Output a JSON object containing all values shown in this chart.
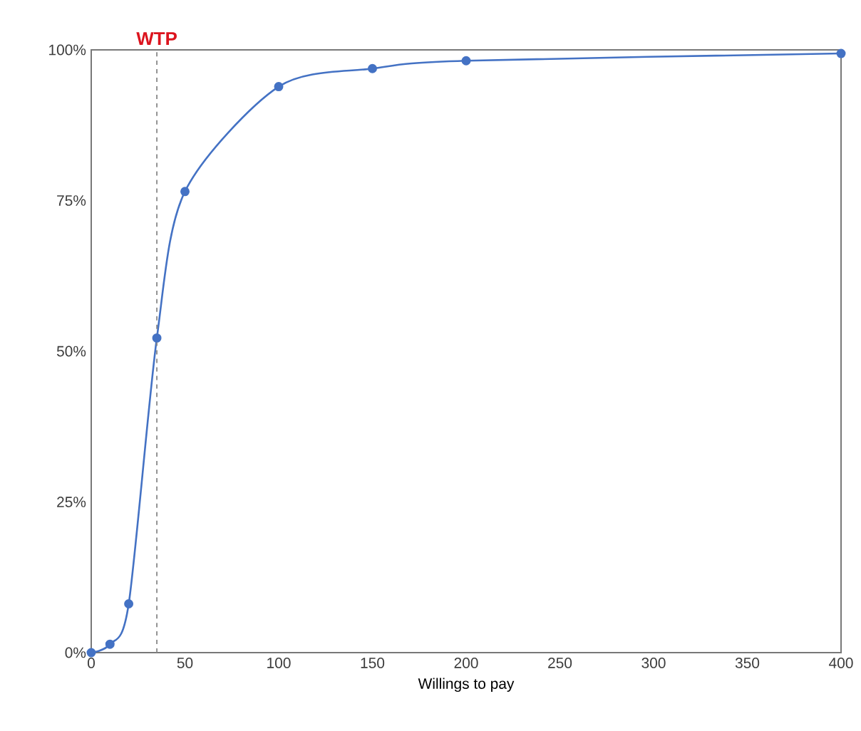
{
  "chart_data": {
    "type": "line",
    "xlabel": "Willings to pay",
    "x": [
      0,
      10,
      20,
      35,
      50,
      100,
      150,
      200,
      400
    ],
    "series": [
      {
        "color": "#4472c4",
        "values": [
          0,
          1.4,
          8.1,
          52.2,
          76.5,
          93.9,
          96.9,
          98.2,
          99.4
        ]
      }
    ],
    "xlim": [
      0,
      400
    ],
    "xticks": [
      0,
      50,
      100,
      150,
      200,
      250,
      300,
      350,
      400
    ],
    "ylim": [
      0,
      100
    ],
    "yticks": [
      {
        "value": 0,
        "label": "0%"
      },
      {
        "value": 25,
        "label": "25%"
      },
      {
        "value": 50,
        "label": "50%"
      },
      {
        "value": 75,
        "label": "75%"
      },
      {
        "value": 100,
        "label": "100%"
      }
    ],
    "ref_lines": [
      {
        "axis": "x",
        "value": 35,
        "label": "WTP",
        "color": "#888888",
        "line_style": "dashed"
      }
    ],
    "marker": "circle",
    "line_style": "solid"
  }
}
